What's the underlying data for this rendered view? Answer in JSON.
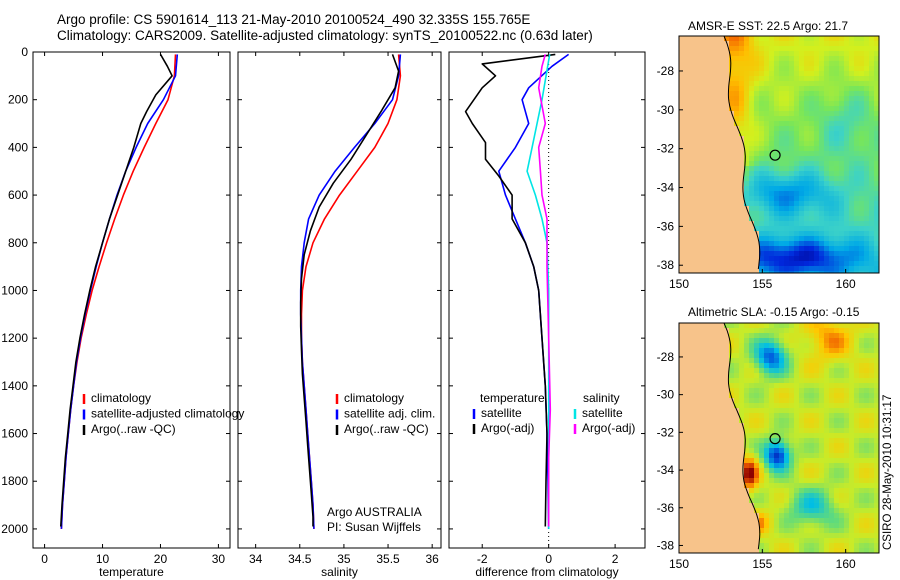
{
  "header": {
    "line1": "Argo profile: CS 5901614_113 21-May-2010 20100524_490 32.335S 155.765E",
    "line2": "Climatology: CARS2009. Satellite-adjusted climatology: synTS_20100522.nc (0.63d later)"
  },
  "colors": {
    "climatology": "#ff0000",
    "satellite": "#0000ff",
    "argo": "#000000",
    "satellite_sal": "#00e5e5",
    "argo_adj_sal": "#ff00ff",
    "land": "#f7c38a"
  },
  "chart_data": [
    {
      "type": "line",
      "id": "temperature",
      "xlabel": "temperature",
      "xlim": [
        -2,
        32
      ],
      "xticks": [
        0,
        10,
        20,
        30
      ],
      "ylim": [
        2080,
        0
      ],
      "yticks": [
        0,
        200,
        400,
        600,
        800,
        1000,
        1200,
        1400,
        1600,
        1800,
        2000
      ],
      "legend": [
        "climatology",
        "satellite-adjusted climatology",
        "Argo(..raw -QC)"
      ],
      "series": [
        {
          "name": "climatology",
          "color": "#ff0000",
          "points": [
            [
              22.6,
              10
            ],
            [
              22.4,
              100
            ],
            [
              21.3,
              200
            ],
            [
              19.2,
              300
            ],
            [
              17.2,
              400
            ],
            [
              15.3,
              500
            ],
            [
              13.6,
              600
            ],
            [
              12.1,
              700
            ],
            [
              10.7,
              800
            ],
            [
              9.4,
              900
            ],
            [
              8.2,
              1000
            ],
            [
              7.2,
              1100
            ],
            [
              6.3,
              1200
            ],
            [
              5.6,
              1300
            ],
            [
              5.0,
              1400
            ],
            [
              4.5,
              1500
            ],
            [
              4.1,
              1600
            ],
            [
              3.7,
              1700
            ],
            [
              3.4,
              1800
            ],
            [
              3.1,
              1900
            ],
            [
              2.9,
              2000
            ]
          ]
        },
        {
          "name": "satellite-adjusted climatology",
          "color": "#0000ff",
          "points": [
            [
              22.9,
              10
            ],
            [
              22.6,
              100
            ],
            [
              20.5,
              200
            ],
            [
              17.8,
              300
            ],
            [
              15.8,
              400
            ],
            [
              14.0,
              500
            ],
            [
              12.5,
              600
            ],
            [
              11.2,
              700
            ],
            [
              10.0,
              800
            ],
            [
              8.9,
              900
            ],
            [
              7.9,
              1000
            ],
            [
              7.0,
              1100
            ],
            [
              6.2,
              1200
            ],
            [
              5.5,
              1300
            ],
            [
              5.0,
              1400
            ],
            [
              4.5,
              1500
            ],
            [
              4.1,
              1600
            ],
            [
              3.7,
              1700
            ],
            [
              3.4,
              1800
            ],
            [
              3.1,
              1900
            ],
            [
              2.9,
              2000
            ]
          ]
        },
        {
          "name": "Argo(..raw -QC)",
          "color": "#000000",
          "points": [
            [
              20.0,
              10
            ],
            [
              21.2,
              60
            ],
            [
              22.0,
              100
            ],
            [
              19.2,
              180
            ],
            [
              17.6,
              250
            ],
            [
              16.6,
              300
            ],
            [
              15.4,
              400
            ],
            [
              14.0,
              500
            ],
            [
              12.6,
              600
            ],
            [
              11.2,
              700
            ],
            [
              10.0,
              800
            ],
            [
              8.8,
              900
            ],
            [
              7.8,
              1000
            ],
            [
              6.9,
              1100
            ],
            [
              6.1,
              1200
            ],
            [
              5.4,
              1300
            ],
            [
              4.9,
              1400
            ],
            [
              4.4,
              1500
            ],
            [
              4.0,
              1600
            ],
            [
              3.6,
              1700
            ],
            [
              3.3,
              1800
            ],
            [
              3.0,
              1900
            ],
            [
              2.8,
              1990
            ]
          ]
        }
      ]
    },
    {
      "type": "line",
      "id": "salinity",
      "xlabel": "salinity",
      "xlim": [
        33.8,
        36.1
      ],
      "xticks": [
        34,
        34.5,
        35,
        35.5,
        36
      ],
      "ylim": [
        2080,
        0
      ],
      "legend": [
        "climatology",
        "satellite adj. clim.",
        "Argo(..raw -QC)"
      ],
      "annotation": [
        "Argo AUSTRALIA",
        "PI: Susan Wijffels"
      ],
      "series": [
        {
          "name": "climatology",
          "color": "#ff0000",
          "points": [
            [
              35.62,
              10
            ],
            [
              35.64,
              100
            ],
            [
              35.6,
              200
            ],
            [
              35.5,
              300
            ],
            [
              35.35,
              400
            ],
            [
              35.15,
              500
            ],
            [
              34.95,
              600
            ],
            [
              34.78,
              700
            ],
            [
              34.65,
              800
            ],
            [
              34.57,
              900
            ],
            [
              34.53,
              1000
            ],
            [
              34.52,
              1100
            ],
            [
              34.52,
              1200
            ],
            [
              34.53,
              1300
            ],
            [
              34.55,
              1400
            ],
            [
              34.57,
              1500
            ],
            [
              34.59,
              1600
            ],
            [
              34.61,
              1700
            ],
            [
              34.63,
              1800
            ],
            [
              34.65,
              1900
            ],
            [
              34.66,
              2000
            ]
          ]
        },
        {
          "name": "satellite adj. clim.",
          "color": "#0000ff",
          "points": [
            [
              35.64,
              10
            ],
            [
              35.62,
              100
            ],
            [
              35.55,
              200
            ],
            [
              35.35,
              300
            ],
            [
              35.12,
              400
            ],
            [
              34.9,
              500
            ],
            [
              34.72,
              600
            ],
            [
              34.6,
              700
            ],
            [
              34.55,
              800
            ],
            [
              34.52,
              900
            ],
            [
              34.51,
              1000
            ],
            [
              34.51,
              1100
            ],
            [
              34.52,
              1200
            ],
            [
              34.53,
              1300
            ],
            [
              34.55,
              1400
            ],
            [
              34.57,
              1500
            ],
            [
              34.59,
              1600
            ],
            [
              34.61,
              1700
            ],
            [
              34.63,
              1800
            ],
            [
              34.65,
              1900
            ],
            [
              34.66,
              2000
            ]
          ]
        },
        {
          "name": "Argo(..raw -QC)",
          "color": "#000000",
          "points": [
            [
              35.55,
              10
            ],
            [
              35.62,
              80
            ],
            [
              35.58,
              150
            ],
            [
              35.42,
              250
            ],
            [
              35.25,
              350
            ],
            [
              35.08,
              450
            ],
            [
              34.88,
              550
            ],
            [
              34.72,
              650
            ],
            [
              34.62,
              750
            ],
            [
              34.55,
              850
            ],
            [
              34.52,
              950
            ],
            [
              34.51,
              1050
            ],
            [
              34.51,
              1150
            ],
            [
              34.52,
              1250
            ],
            [
              34.53,
              1350
            ],
            [
              34.55,
              1450
            ],
            [
              34.57,
              1550
            ],
            [
              34.59,
              1650
            ],
            [
              34.61,
              1750
            ],
            [
              34.63,
              1850
            ],
            [
              34.65,
              1950
            ],
            [
              34.65,
              1990
            ]
          ]
        }
      ]
    },
    {
      "type": "line",
      "id": "difference",
      "xlabel": "difference from climatology",
      "xlim": [
        -3.0,
        2.9
      ],
      "xticks": [
        -2,
        0,
        2
      ],
      "ylim": [
        2080,
        0
      ],
      "zero_line": 0,
      "legend": [
        "temperature",
        "satellite",
        "Argo(-adj)",
        "salinity",
        "satellite",
        "Argo(-adj)"
      ],
      "series": [
        {
          "name": "temperature satellite",
          "color": "#0000ff",
          "points": [
            [
              0.6,
              10
            ],
            [
              0.1,
              60
            ],
            [
              -0.6,
              150
            ],
            [
              -0.8,
              200
            ],
            [
              -0.6,
              300
            ],
            [
              -1.0,
              400
            ],
            [
              -1.5,
              500
            ],
            [
              -1.3,
              600
            ],
            [
              -1.0,
              700
            ],
            [
              -0.7,
              800
            ],
            [
              -0.45,
              900
            ],
            [
              -0.3,
              1000
            ],
            [
              -0.2,
              1200
            ],
            [
              -0.1,
              1400
            ],
            [
              -0.05,
              1600
            ],
            [
              -0.02,
              1800
            ],
            [
              0.0,
              2000
            ]
          ]
        },
        {
          "name": "temperature Argo(-adj)",
          "color": "#000000",
          "points": [
            [
              0.2,
              10
            ],
            [
              -2.0,
              50
            ],
            [
              -1.6,
              100
            ],
            [
              -2.0,
              150
            ],
            [
              -2.5,
              250
            ],
            [
              -2.3,
              300
            ],
            [
              -1.9,
              380
            ],
            [
              -1.9,
              450
            ],
            [
              -1.5,
              520
            ],
            [
              -1.1,
              600
            ],
            [
              -1.1,
              700
            ],
            [
              -0.7,
              800
            ],
            [
              -0.45,
              900
            ],
            [
              -0.3,
              1000
            ],
            [
              -0.2,
              1200
            ],
            [
              -0.1,
              1400
            ],
            [
              -0.05,
              1600
            ],
            [
              -0.08,
              1800
            ],
            [
              -0.1,
              1990
            ]
          ]
        },
        {
          "name": "salinity satellite",
          "color": "#00e5e5",
          "points": [
            [
              0.03,
              10
            ],
            [
              -0.2,
              200
            ],
            [
              -0.5,
              400
            ],
            [
              -0.65,
              500
            ],
            [
              -0.4,
              600
            ],
            [
              -0.2,
              700
            ],
            [
              -0.05,
              800
            ],
            [
              0.0,
              1000
            ],
            [
              0.0,
              1200
            ],
            [
              0.0,
              1400
            ],
            [
              0.0,
              1600
            ],
            [
              0.0,
              1800
            ],
            [
              0.0,
              2000
            ]
          ]
        },
        {
          "name": "salinity Argo(-adj)",
          "color": "#ff00ff",
          "points": [
            [
              -0.1,
              10
            ],
            [
              -0.2,
              60
            ],
            [
              -0.3,
              150
            ],
            [
              -0.1,
              300
            ],
            [
              -0.3,
              400
            ],
            [
              -0.25,
              500
            ],
            [
              -0.2,
              600
            ],
            [
              -0.05,
              700
            ],
            [
              -0.05,
              900
            ],
            [
              0.0,
              1200
            ],
            [
              0.05,
              1500
            ],
            [
              0.0,
              1700
            ],
            [
              0.0,
              1990
            ]
          ]
        }
      ]
    }
  ],
  "maps": [
    {
      "id": "sst",
      "title": "AMSR-E SST: 22.5 Argo: 21.7",
      "lon_ticks": [
        150,
        155,
        160
      ],
      "lat_ticks": [
        -28,
        -30,
        -32,
        -34,
        -36,
        -38
      ],
      "lon_range": [
        150,
        162
      ],
      "lat_range": [
        -38.4,
        -26.2
      ],
      "float_position": {
        "lon": 155.765,
        "lat": -32.335
      }
    },
    {
      "id": "sla",
      "title": "Altimetric SLA: -0.15 Argo: -0.15",
      "lon_ticks": [
        150,
        155,
        160
      ],
      "lat_ticks": [
        -28,
        -30,
        -32,
        -34,
        -36,
        -38
      ],
      "lon_range": [
        150,
        162
      ],
      "lat_range": [
        -38.4,
        -26.2
      ],
      "float_position": {
        "lon": 155.765,
        "lat": -32.335
      }
    }
  ],
  "stamp": "CSIRO 28-May-2010 10:31:17"
}
